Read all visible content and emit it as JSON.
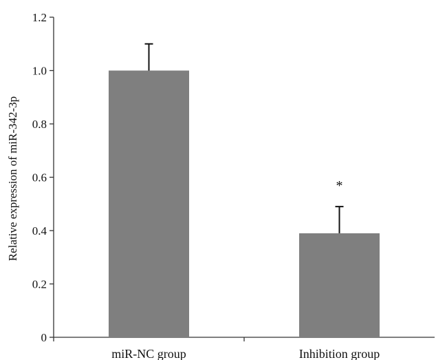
{
  "chart_data": {
    "type": "bar",
    "title": "",
    "xlabel": "",
    "ylabel": "Relative expression of miR-342-3p",
    "categories": [
      "miR-NC group",
      "Inhibition group"
    ],
    "values": [
      1.0,
      0.39
    ],
    "error": [
      0.1,
      0.1
    ],
    "annotations": [
      "",
      "*"
    ],
    "ylim": [
      0,
      1.2
    ],
    "yticks": [
      0,
      0.2,
      0.4,
      0.6,
      0.8,
      1.0,
      1.2
    ],
    "ytick_labels": [
      "0",
      "0.2",
      "0.4",
      "0.6",
      "0.8",
      "1.0",
      "1.2"
    ],
    "grid": false,
    "legend": "none",
    "colors": {
      "bar": "#7f7f7f",
      "axis": "#333333",
      "error": "#111111"
    }
  }
}
